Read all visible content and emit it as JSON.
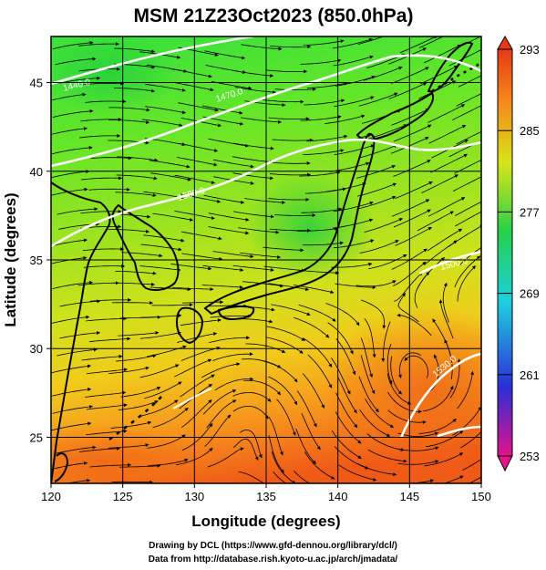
{
  "title": "MSM 21Z23Oct2023 (850.0hPa)",
  "xaxis": {
    "label": "Longitude (degrees)",
    "range": [
      120,
      150
    ],
    "ticks": [
      "120",
      "125",
      "130",
      "135",
      "140",
      "145",
      "150"
    ]
  },
  "yaxis": {
    "label": "Latitude  (degrees)",
    "range": [
      22.4,
      47.6
    ],
    "ticks": [
      "25",
      "30",
      "35",
      "40",
      "45"
    ]
  },
  "colorbar": {
    "range": [
      253,
      293
    ],
    "ticks": [
      "293",
      "285",
      "277",
      "269",
      "261",
      "253"
    ],
    "colors": [
      "#e4128c",
      "#2a2fd6",
      "#1fd0e0",
      "#26d04a",
      "#d8e41a",
      "#f5891c",
      "#e83a14"
    ]
  },
  "map": {
    "contour_labels": [
      "1440.0",
      "1470.0",
      "1500.0",
      "1500.0",
      "1530.0"
    ],
    "coastline_color": "#000000",
    "contour_color": "#ffffff",
    "streamline_color": "#000000"
  },
  "credits": {
    "line1": "Drawing by DCL (https://www.gfd-dennou.org/library/dcl/)",
    "line2": "Data from http://database.rish.kyoto-u.ac.jp/arch/jmadata/"
  }
}
